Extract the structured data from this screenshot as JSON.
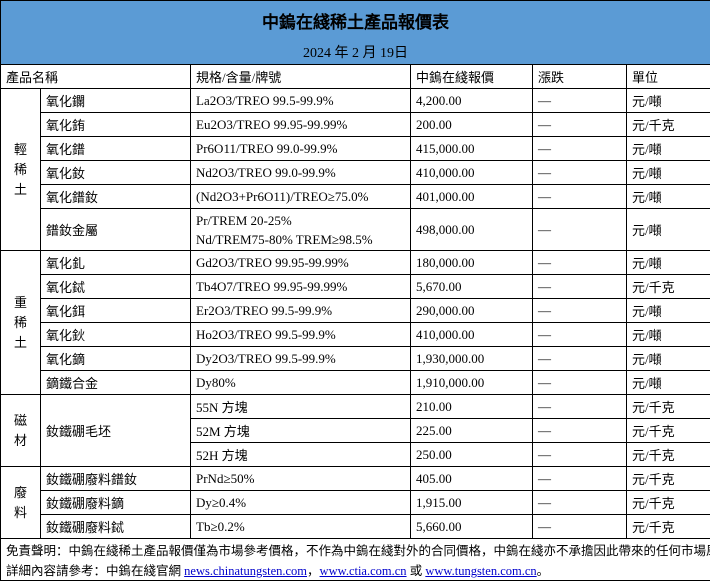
{
  "title": "中鎢在綫稀土產品報價表",
  "date": "2024 年 2 月 19日",
  "headers": [
    "產品名稱",
    "規格/含量/牌號",
    "中鎢在綫報價",
    "漲跌",
    "單位"
  ],
  "groups": [
    {
      "name": "輕稀土",
      "rows": [
        {
          "name": "氧化鑭",
          "spec": "La2O3/TREO 99.5-99.9%",
          "price": "4,200.00",
          "change": "—",
          "unit": "元/噸"
        },
        {
          "name": "氧化銪",
          "spec": "Eu2O3/TREO 99.95-99.99%",
          "price": "200.00",
          "change": "—",
          "unit": "元/千克"
        },
        {
          "name": "氧化鐠",
          "spec": "Pr6O11/TREO 99.0-99.9%",
          "price": "415,000.00",
          "change": "—",
          "unit": "元/噸"
        },
        {
          "name": "氧化釹",
          "spec": "Nd2O3/TREO 99.0-99.9%",
          "price": "410,000.00",
          "change": "—",
          "unit": "元/噸"
        },
        {
          "name": "氧化鐠釹",
          "spec": "(Nd2O3+Pr6O11)/TREO≥75.0%",
          "price": "401,000.00",
          "change": "—",
          "unit": "元/噸"
        },
        {
          "name": "鐠釹金屬",
          "spec": "Pr/TREM 20-25%",
          "spec2": "Nd/TREM75-80% TREM≥98.5%",
          "price": "498,000.00",
          "change": "—",
          "unit": "元/噸"
        }
      ]
    },
    {
      "name": "重稀土",
      "rows": [
        {
          "name": "氧化釓",
          "spec": "Gd2O3/TREO 99.95-99.99%",
          "price": "180,000.00",
          "change": "—",
          "unit": "元/噸"
        },
        {
          "name": "氧化鋱",
          "spec": "Tb4O7/TREO 99.95-99.99%",
          "price": "5,670.00",
          "change": "—",
          "unit": "元/千克"
        },
        {
          "name": "氧化鉺",
          "spec": "Er2O3/TREO 99.5-99.9%",
          "price": "290,000.00",
          "change": "—",
          "unit": "元/噸"
        },
        {
          "name": "氧化鈥",
          "spec": "Ho2O3/TREO 99.5-99.9%",
          "price": "410,000.00",
          "change": "—",
          "unit": "元/噸"
        },
        {
          "name": "氧化鏑",
          "spec": "Dy2O3/TREO 99.5-99.9%",
          "price": "1,930,000.00",
          "change": "—",
          "unit": "元/噸"
        },
        {
          "name": "鏑鐵合金",
          "spec": "Dy80%",
          "price": "1,910,000.00",
          "change": "—",
          "unit": "元/噸"
        }
      ]
    },
    {
      "name": "磁材",
      "product": "釹鐵硼毛坯",
      "rows": [
        {
          "spec": "55N 方塊",
          "price": "210.00",
          "change": "—",
          "unit": "元/千克"
        },
        {
          "spec": "52M 方塊",
          "price": "225.00",
          "change": "—",
          "unit": "元/千克"
        },
        {
          "spec": "52H 方塊",
          "price": "250.00",
          "change": "—",
          "unit": "元/千克"
        }
      ]
    },
    {
      "name": "廢料",
      "rows": [
        {
          "name": "釹鐵硼廢料鐠釹",
          "spec": "PrNd≥50%",
          "price": "405.00",
          "change": "—",
          "unit": "元/千克"
        },
        {
          "name": "釹鐵硼廢料鏑",
          "spec": "Dy≥0.4%",
          "price": "1,915.00",
          "change": "—",
          "unit": "元/千克"
        },
        {
          "name": "釹鐵硼廢料鋱",
          "spec": "Tb≥0.2%",
          "price": "5,660.00",
          "change": "—",
          "unit": "元/千克"
        }
      ]
    }
  ],
  "footer": {
    "disclaimer": "免責聲明：中鎢在綫稀土產品報價僅為市場參考價格，不作為中鎢在綫對外的合同價格，中鎢在綫亦不承擔因此帶來的任何市場風險；",
    "ref_prefix": "詳細內容請參考：中鎢在綫官網 ",
    "link1": "news.chinatungsten.com",
    "sep1": "，",
    "link2": "www.ctia.com.cn",
    "sep2": " 或 ",
    "link3": "www.tungsten.com.cn",
    "end": "。"
  },
  "colors": {
    "header_bg": "#5b9bd5"
  }
}
